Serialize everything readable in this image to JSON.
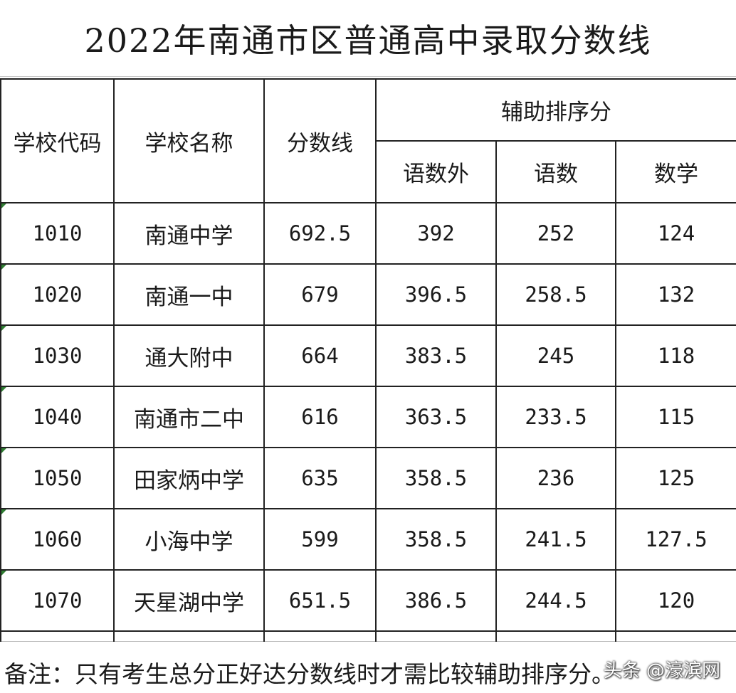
{
  "title": "2022年南通市区普通高中录取分数线",
  "headers": {
    "code": "学校代码",
    "name": "学校名称",
    "score": "分数线",
    "aux_group": "辅助排序分",
    "aux_yus": "语数外",
    "aux_ys": "语数",
    "aux_math": "数学"
  },
  "rows": [
    {
      "code": "1010",
      "name": "南通中学",
      "score": "692.5",
      "yus": "392",
      "ys": "252",
      "math": "124"
    },
    {
      "code": "1020",
      "name": "南通一中",
      "score": "679",
      "yus": "396.5",
      "ys": "258.5",
      "math": "132"
    },
    {
      "code": "1030",
      "name": "通大附中",
      "score": "664",
      "yus": "383.5",
      "ys": "245",
      "math": "118"
    },
    {
      "code": "1040",
      "name": "南通市二中",
      "score": "616",
      "yus": "363.5",
      "ys": "233.5",
      "math": "115"
    },
    {
      "code": "1050",
      "name": "田家炳中学",
      "score": "635",
      "yus": "358.5",
      "ys": "236",
      "math": "125"
    },
    {
      "code": "1060",
      "name": "小海中学",
      "score": "599",
      "yus": "358.5",
      "ys": "241.5",
      "math": "127.5"
    },
    {
      "code": "1070",
      "name": "天星湖中学",
      "score": "651.5",
      "yus": "386.5",
      "ys": "244.5",
      "math": "120"
    }
  ],
  "note": "备注：只有考生总分正好达分数线时才需比较辅助排序分。",
  "watermark": "头条 @濠滨网",
  "colors": {
    "border": "#222222",
    "cell_marker": "#2f7d32"
  }
}
